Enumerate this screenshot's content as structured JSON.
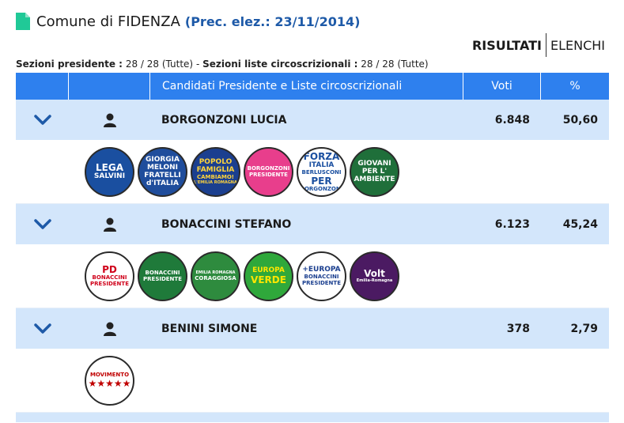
{
  "header": {
    "title": "Comune di FIDENZA",
    "prec": "(Prec. elez.: 23/11/2014)"
  },
  "tabs": {
    "risultati": "RISULTATI",
    "elenchi": "ELENCHI"
  },
  "sezioni": {
    "presidente_label": "Sezioni presidente :",
    "presidente_value": "28 / 28 (Tutte)",
    "sep": "-",
    "liste_label": "Sezioni liste circoscrizionali :",
    "liste_value": "28 / 28 (Tutte)"
  },
  "table": {
    "headers": {
      "candidati": "Candidati Presidente e Liste circoscrizionali",
      "voti": "Voti",
      "pct": "%"
    },
    "candidates": [
      {
        "name": "BORGONZONI LUCIA",
        "voti": "6.848",
        "pct": "50,60",
        "logos": [
          {
            "lines": [
              "LEGA",
              "SALVINI"
            ],
            "bg": "#1a4fa0",
            "fg": "#ffffff"
          },
          {
            "lines": [
              "GIORGIA",
              "MELONI",
              "FRATELLI",
              "d'ITALIA"
            ],
            "bg": "#1f4d9c",
            "fg": "#ffffff"
          },
          {
            "lines": [
              "POPOLO",
              "FAMIGLIA",
              "CAMBIAMO!",
              "L'EMILIA ROMAGNA"
            ],
            "bg": "#1b3f8f",
            "fg": "#ffd43b"
          },
          {
            "lines": [
              "BORGONZONI",
              "PRESIDENTE"
            ],
            "bg": "#e83e8c",
            "fg": "#ffffff"
          },
          {
            "lines": [
              "FORZA",
              "ITALIA",
              "BERLUSCONI",
              "PER",
              "BORGONZONI"
            ],
            "bg": "#ffffff",
            "fg": "#1a4fa0"
          },
          {
            "lines": [
              "GIOVANI",
              "PER L'",
              "AMBIENTE"
            ],
            "bg": "#1f6f3a",
            "fg": "#ffffff"
          }
        ]
      },
      {
        "name": "BONACCINI STEFANO",
        "voti": "6.123",
        "pct": "45,24",
        "logos": [
          {
            "lines": [
              "PD",
              "BONACCINI",
              "PRESIDENTE"
            ],
            "bg": "#ffffff",
            "fg": "#d0021b"
          },
          {
            "lines": [
              "BONACCINI",
              "PRESIDENTE"
            ],
            "bg": "#1f7a3a",
            "fg": "#ffffff"
          },
          {
            "lines": [
              "EMILIA ROMAGNA",
              "CORAGGIOSA"
            ],
            "bg": "#2e8b3e",
            "fg": "#ffffff"
          },
          {
            "lines": [
              "EUROPA",
              "VERDE"
            ],
            "bg": "#2fa83b",
            "fg": "#ffe600"
          },
          {
            "lines": [
              "+EUROPA",
              "BONACCINI",
              "PRESIDENTE"
            ],
            "bg": "#ffffff",
            "fg": "#1b3f8f"
          },
          {
            "lines": [
              "Volt",
              "Emilia-Romagna"
            ],
            "bg": "#4b1a62",
            "fg": "#ffffff"
          }
        ]
      },
      {
        "name": "BENINI SIMONE",
        "voti": "378",
        "pct": "2,79",
        "logos": [
          {
            "lines": [
              "MOVIMENTO",
              "★★★★★"
            ],
            "bg": "#ffffff",
            "fg": "#c00000"
          }
        ]
      }
    ]
  },
  "colors": {
    "header_blue": "#2e80ee",
    "row_blue": "#d3e6fb",
    "prec_blue": "#1e5aa8",
    "icon_green": "#20c997"
  },
  "icons": {
    "doc": "document-icon",
    "expand": "chevron-down-icon",
    "person": "person-icon"
  }
}
